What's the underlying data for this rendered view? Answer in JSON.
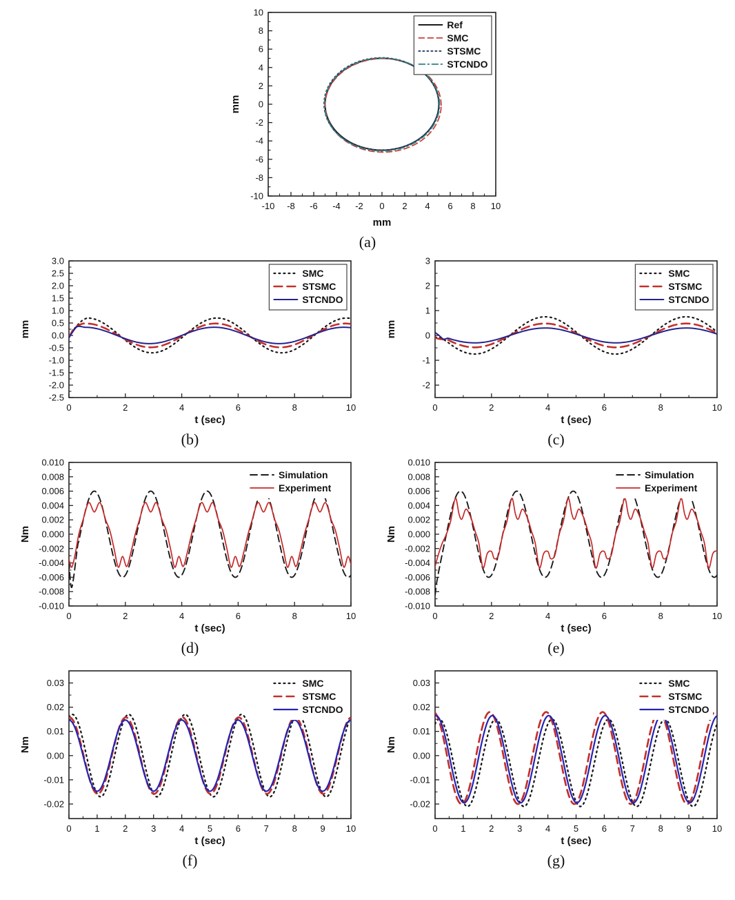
{
  "page": {
    "background": "#ffffff"
  },
  "chart_data": [
    {
      "id": "a",
      "caption": "(a)",
      "type": "line",
      "xlabel": "mm",
      "ylabel": "mm",
      "xlim": [
        -10,
        10
      ],
      "ylim": [
        -10,
        10
      ],
      "xticks": [
        -10,
        -8,
        -6,
        -4,
        -2,
        0,
        2,
        4,
        6,
        8,
        10
      ],
      "yticks": [
        -10,
        -8,
        -6,
        -4,
        -2,
        0,
        2,
        4,
        6,
        8,
        10
      ],
      "x_decimals": 0,
      "y_decimals": 0,
      "legend": {
        "box": true,
        "position": "top-right"
      },
      "series": [
        {
          "name": "Ref",
          "color": "#1a1a1a",
          "dash": "",
          "width": 2.0,
          "circle": {
            "cx": 0,
            "cy": 0,
            "r": 5.0
          }
        },
        {
          "name": "SMC",
          "color": "#c8413b",
          "dash": "8 5",
          "width": 1.8,
          "circle": {
            "cx": 0.1,
            "cy": -0.12,
            "r": 5.1
          }
        },
        {
          "name": "STSMC",
          "color": "#31446e",
          "dash": "2 4",
          "width": 2.0,
          "circle": {
            "cx": -0.05,
            "cy": 0.02,
            "r": 5.04
          }
        },
        {
          "name": "STCNDO",
          "color": "#2e8282",
          "dash": "9 4 2 4",
          "width": 1.7,
          "circle": {
            "cx": 0,
            "cy": -0.03,
            "r": 5.06
          }
        }
      ]
    },
    {
      "id": "b",
      "caption": "(b)",
      "type": "line",
      "xlabel": "t (sec)",
      "ylabel": "mm",
      "xlim": [
        0,
        10
      ],
      "ylim": [
        -2.5,
        3.0
      ],
      "xticks": [
        0,
        2,
        4,
        6,
        8,
        10
      ],
      "yticks": [
        -2.5,
        -2.0,
        -1.5,
        -1.0,
        -0.5,
        0.0,
        0.5,
        1.0,
        1.5,
        2.0,
        2.5,
        3.0
      ],
      "x_decimals": 0,
      "y_decimals": 1,
      "legend": {
        "box": true,
        "position": "top-right"
      },
      "series": [
        {
          "name": "SMC",
          "color": "#1a1a1a",
          "dash": "2 5",
          "width": 2.2,
          "pre": [
            [
              0,
              -0.05
            ],
            [
              0.2,
              0.28
            ],
            [
              0.45,
              0.58
            ]
          ],
          "wave": {
            "A": 0.7,
            "T": 4.6,
            "tPeak": 0.65,
            "t0": 0.65
          }
        },
        {
          "name": "STSMC",
          "color": "#c3302a",
          "dash": "12 7",
          "width": 2.6,
          "pre": [
            [
              0,
              -0.07
            ],
            [
              0.2,
              0.3
            ],
            [
              0.45,
              0.46
            ]
          ],
          "wave": {
            "A": 0.48,
            "T": 4.6,
            "tPeak": 0.6,
            "t0": 0.6
          }
        },
        {
          "name": "STCNDO",
          "color": "#23238e",
          "dash": "",
          "width": 2.0,
          "pre": [
            [
              0,
              -0.1
            ],
            [
              0.12,
              0.12
            ],
            [
              0.3,
              0.36
            ]
          ],
          "wave": {
            "A": 0.33,
            "T": 4.6,
            "tPeak": 0.55,
            "t0": 0.55
          }
        }
      ]
    },
    {
      "id": "c",
      "caption": "(c)",
      "type": "line",
      "xlabel": "t (sec)",
      "ylabel": "mm",
      "xlim": [
        0,
        10
      ],
      "ylim": [
        -2.5,
        3.0
      ],
      "xticks": [
        0,
        2,
        4,
        6,
        8,
        10
      ],
      "yticks": [
        -2,
        -1,
        0,
        1,
        2,
        3
      ],
      "x_decimals": 0,
      "y_decimals": 0,
      "legend": {
        "box": true,
        "position": "top-right"
      },
      "series": [
        {
          "name": "SMC",
          "color": "#1a1a1a",
          "dash": "2 5",
          "width": 2.2,
          "pre": [
            [
              0,
              -0.08
            ],
            [
              0.2,
              -0.1
            ]
          ],
          "wave": {
            "A": 0.75,
            "T": 5.0,
            "tPeak": 3.9,
            "t0": 0.45
          }
        },
        {
          "name": "STSMC",
          "color": "#c3302a",
          "dash": "12 7",
          "width": 2.6,
          "pre": [
            [
              0,
              -0.1
            ],
            [
              0.2,
              -0.15
            ]
          ],
          "wave": {
            "A": 0.48,
            "T": 5.0,
            "tPeak": 3.9,
            "t0": 0.45
          }
        },
        {
          "name": "STCNDO",
          "color": "#23238e",
          "dash": "",
          "width": 2.0,
          "pre": [
            [
              0,
              0.12
            ],
            [
              0.12,
              0.02
            ],
            [
              0.3,
              -0.15
            ]
          ],
          "wave": {
            "A": 0.3,
            "T": 5.0,
            "tPeak": 3.9,
            "t0": 0.45
          }
        }
      ]
    },
    {
      "id": "d",
      "caption": "(d)",
      "type": "line",
      "xlabel": "t (sec)",
      "ylabel": "Nm",
      "xlim": [
        0,
        10
      ],
      "ylim": [
        -0.01,
        0.01
      ],
      "xticks": [
        0,
        2,
        4,
        6,
        8,
        10
      ],
      "yticks": [
        -0.01,
        -0.008,
        -0.006,
        -0.004,
        -0.002,
        0.0,
        0.002,
        0.004,
        0.006,
        0.008,
        0.01
      ],
      "x_decimals": 0,
      "y_decimals": 3,
      "legend": {
        "box": false,
        "position": "top-right"
      },
      "series": [
        {
          "name": "Simulation",
          "color": "#1a1a1a",
          "dash": "10 6",
          "width": 1.9,
          "pre": [
            [
              0,
              -0.0038
            ],
            [
              0.1,
              -0.0074
            ]
          ],
          "wave": {
            "A": 0.006,
            "T": 2.0,
            "tPeak": 0.9,
            "t0": 0.3
          }
        },
        {
          "name": "Experiment",
          "color": "#c62828",
          "dash": "",
          "width": 1.7,
          "pre": [
            [
              0,
              -0.0035
            ],
            [
              0.1,
              -0.0046
            ],
            [
              0.22,
              -0.0028
            ]
          ],
          "cycle": {
            "repeat": 5,
            "dt": 2,
            "template": [
              [
                0.35,
                0
              ],
              [
                0.5,
                0.002
              ],
              [
                0.7,
                0.0044
              ],
              [
                0.9,
                0.0031
              ],
              [
                1.1,
                0.0044
              ],
              [
                1.3,
                0.002
              ],
              [
                1.45,
                0.0005
              ],
              [
                1.6,
                -0.002
              ],
              [
                1.75,
                -0.0046
              ],
              [
                1.9,
                -0.0031
              ],
              [
                2.05,
                -0.0045
              ],
              [
                2.2,
                -0.0025
              ]
            ]
          }
        }
      ]
    },
    {
      "id": "e",
      "caption": "(e)",
      "type": "line",
      "xlabel": "t (sec)",
      "ylabel": "Nm",
      "xlim": [
        0,
        10
      ],
      "ylim": [
        -0.01,
        0.01
      ],
      "xticks": [
        0,
        2,
        4,
        6,
        8,
        10
      ],
      "yticks": [
        -0.01,
        -0.008,
        -0.006,
        -0.004,
        -0.002,
        0.0,
        0.002,
        0.004,
        0.006,
        0.008,
        0.01
      ],
      "x_decimals": 0,
      "y_decimals": 3,
      "legend": {
        "box": false,
        "position": "top-right"
      },
      "series": [
        {
          "name": "Simulation",
          "color": "#1a1a1a",
          "dash": "10 6",
          "width": 1.9,
          "pre": [
            [
              0,
              -0.0085
            ],
            [
              0.08,
              -0.0062
            ]
          ],
          "wave": {
            "A": 0.006,
            "T": 2.0,
            "tPeak": 0.9,
            "t0": 0.3
          }
        },
        {
          "name": "Experiment",
          "color": "#c62828",
          "dash": "",
          "width": 1.7,
          "pre": [
            [
              0,
              -0.0045
            ],
            [
              0.12,
              -0.0028
            ],
            [
              0.25,
              -0.0013
            ]
          ],
          "cycle": {
            "repeat": 5,
            "dt": 2,
            "template": [
              [
                0.4,
                0
              ],
              [
                0.55,
                0.0018
              ],
              [
                0.72,
                0.005
              ],
              [
                0.85,
                0.0028
              ],
              [
                0.95,
                0.0021
              ],
              [
                1.1,
                0.0035
              ],
              [
                1.28,
                0.0022
              ],
              [
                1.42,
                0.0004
              ],
              [
                1.55,
                -0.0012
              ],
              [
                1.7,
                -0.0047
              ],
              [
                1.85,
                -0.0027
              ],
              [
                2.0,
                -0.0024
              ],
              [
                2.1,
                -0.0034
              ],
              [
                2.25,
                -0.0029
              ]
            ]
          }
        }
      ]
    },
    {
      "id": "f",
      "caption": "(f)",
      "type": "line",
      "xlabel": "t (sec)",
      "ylabel": "Nm",
      "xlim": [
        0,
        10
      ],
      "ylim": [
        -0.026,
        0.035
      ],
      "xticks": [
        0,
        1,
        2,
        3,
        4,
        5,
        6,
        7,
        8,
        9,
        10
      ],
      "yticks": [
        -0.02,
        -0.01,
        0.0,
        0.01,
        0.02,
        0.03
      ],
      "x_decimals": 0,
      "y_decimals": 2,
      "legend": {
        "box": false,
        "position": "top-right"
      },
      "series": [
        {
          "name": "SMC",
          "color": "#1a1a1a",
          "dash": "2 5",
          "width": 2.3,
          "wave": {
            "A": 0.017,
            "T": 2.0,
            "tPeak": 0.12,
            "t0": 0
          }
        },
        {
          "name": "STSMC",
          "color": "#c3302a",
          "dash": "11 7",
          "width": 2.7,
          "wave": {
            "A": 0.0158,
            "T": 2.0,
            "tPeak": 0.02,
            "t0": 0
          }
        },
        {
          "name": "STCNDO",
          "color": "#2424b4",
          "dash": "",
          "width": 2.2,
          "wave": {
            "A": 0.0147,
            "T": 2.0,
            "tPeak": 0.0,
            "t0": 0
          }
        }
      ]
    },
    {
      "id": "g",
      "caption": "(g)",
      "type": "line",
      "xlabel": "t (sec)",
      "ylabel": "Nm",
      "xlim": [
        0,
        10
      ],
      "ylim": [
        -0.026,
        0.035
      ],
      "xticks": [
        0,
        1,
        2,
        3,
        4,
        5,
        6,
        7,
        8,
        9,
        10
      ],
      "yticks": [
        -0.02,
        -0.01,
        0.0,
        0.01,
        0.02,
        0.03
      ],
      "x_decimals": 0,
      "y_decimals": 2,
      "legend": {
        "box": false,
        "position": "top-right"
      },
      "series": [
        {
          "name": "SMC",
          "color": "#1a1a1a",
          "dash": "2 5",
          "width": 2.3,
          "wave": {
            "A": 0.018,
            "T": 2.0,
            "tPeak": 0.15,
            "offset": -0.003,
            "t0": 0,
            "clipMax": 0.0152
          }
        },
        {
          "name": "STSMC",
          "color": "#c3302a",
          "dash": "11 7",
          "width": 2.7,
          "wave": {
            "A": 0.019,
            "T": 2.0,
            "tPeak": -0.06,
            "offset": -0.001,
            "t0": 0
          }
        },
        {
          "name": "STCNDO",
          "color": "#2424b4",
          "dash": "",
          "width": 2.2,
          "wave": {
            "A": 0.018,
            "T": 2.0,
            "tPeak": 0.03,
            "offset": -0.0015,
            "t0": 0
          }
        }
      ]
    }
  ]
}
